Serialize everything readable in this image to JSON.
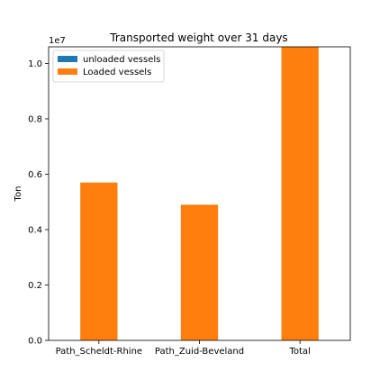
{
  "chart_data": {
    "type": "bar",
    "stacked": true,
    "title": "Transported weight over 31 days",
    "xlabel": "",
    "ylabel": "Ton",
    "y_scale_label": "1e7",
    "categories": [
      "Path_Scheldt-Rhine",
      "Path_Zuid-Beveland",
      "Total"
    ],
    "series": [
      {
        "name": "unloaded vessels",
        "color": "#1f77b4",
        "values": [
          0,
          0,
          0
        ]
      },
      {
        "name": "Loaded vessels",
        "color": "#ff7f0e",
        "values": [
          0.57,
          0.49,
          1.06
        ]
      }
    ],
    "y_ticks": [
      "0.0",
      "0.2",
      "0.4",
      "0.6",
      "0.8",
      "1.0"
    ],
    "y_tick_values": [
      0,
      0.2,
      0.4,
      0.6,
      0.8,
      1.0
    ],
    "ylim": [
      0,
      1.06
    ],
    "grid": false,
    "legend_position": "top-left"
  }
}
